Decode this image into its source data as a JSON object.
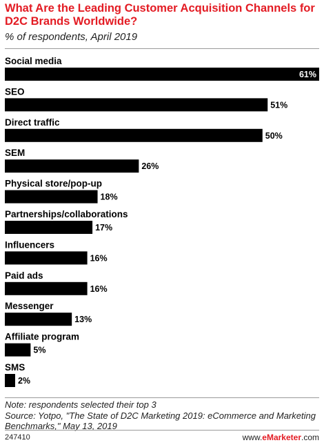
{
  "header": {
    "title": "What Are the Leading Customer Acquisition Channels for D2C Brands Worldwide?",
    "subtitle": "% of respondents, April 2019"
  },
  "chart_data": {
    "type": "bar",
    "orientation": "horizontal",
    "categories": [
      "Social media",
      "SEO",
      "Direct traffic",
      "SEM",
      "Physical store/pop-up",
      "Partnerships/collaborations",
      "Influencers",
      "Paid ads",
      "Messenger",
      "Affiliate program",
      "SMS"
    ],
    "values": [
      61,
      51,
      50,
      26,
      18,
      17,
      16,
      16,
      13,
      5,
      2
    ],
    "value_labels": [
      "61%",
      "51%",
      "50%",
      "26%",
      "18%",
      "17%",
      "16%",
      "16%",
      "13%",
      "5%",
      "2%"
    ],
    "title": "What Are the Leading Customer Acquisition Channels for D2C Brands Worldwide?",
    "subtitle": "% of respondents, April 2019",
    "xlim": [
      0,
      61
    ],
    "grid": false,
    "colors": {
      "bar": "#000000",
      "inside_label": "#ffffff",
      "outside_label": "#000000"
    }
  },
  "footer": {
    "note": "Note: respondents selected their top 3",
    "source": "Source: Yotpo, \"The State of D2C Marketing 2019: eCommerce and Marketing Benchmarks,\" May 13, 2019",
    "chart_id": "247410",
    "brand_prefix": "www.",
    "brand_name": "eMarketer",
    "brand_suffix": ".com"
  },
  "colors": {
    "title": "#e31b23",
    "brand": "#e31b23"
  }
}
